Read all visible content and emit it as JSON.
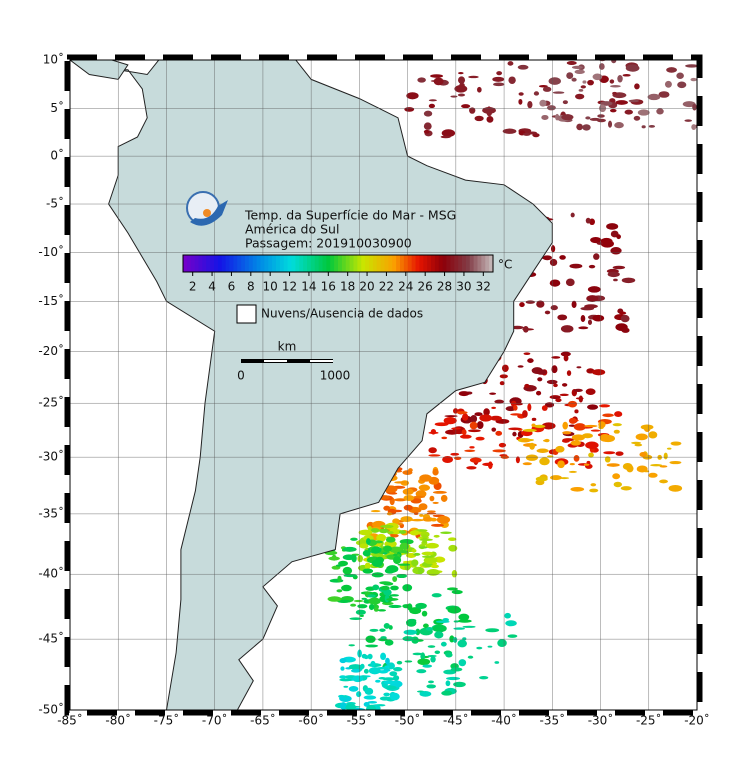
{
  "map": {
    "title_lines": [
      "Temp. da Superfície do Mar - MSG",
      "América do Sul",
      "Passagem: 201910030900"
    ],
    "lon_ticks": [
      {
        "value": -85,
        "label": "-85˚"
      },
      {
        "value": -80,
        "label": "-80˚"
      },
      {
        "value": -75,
        "label": "-75˚"
      },
      {
        "value": -70,
        "label": "-70˚"
      },
      {
        "value": -65,
        "label": "-65˚"
      },
      {
        "value": -60,
        "label": "-60˚"
      },
      {
        "value": -55,
        "label": "-55˚"
      },
      {
        "value": -50,
        "label": "-50˚"
      },
      {
        "value": -45,
        "label": "-45˚"
      },
      {
        "value": -40,
        "label": "-40˚"
      },
      {
        "value": -35,
        "label": "-35˚"
      },
      {
        "value": -30,
        "label": "-30˚"
      },
      {
        "value": -25,
        "label": "-25˚"
      },
      {
        "value": -20,
        "label": "-20˚"
      }
    ],
    "lat_ticks": [
      {
        "value": 10,
        "label": "10˚"
      },
      {
        "value": 5,
        "label": "5˚"
      },
      {
        "value": 0,
        "label": "0˚"
      },
      {
        "value": -5,
        "label": "-5˚"
      },
      {
        "value": -10,
        "label": "-10˚"
      },
      {
        "value": -15,
        "label": "-15˚"
      },
      {
        "value": -20,
        "label": "-20˚"
      },
      {
        "value": -25,
        "label": "-25˚"
      },
      {
        "value": -30,
        "label": "-30˚"
      },
      {
        "value": -35,
        "label": "-35˚"
      },
      {
        "value": -40,
        "label": "-40˚"
      },
      {
        "value": -45,
        "label": "-45˚"
      },
      {
        "value": -50,
        "label": "-50˚"
      }
    ],
    "xlim": [
      -85,
      -20
    ],
    "ylim": [
      -50,
      10
    ],
    "colorbar": {
      "unit": "°C",
      "clim": [
        1,
        33
      ],
      "ticks": [
        2,
        4,
        6,
        8,
        10,
        12,
        14,
        16,
        18,
        20,
        22,
        24,
        26,
        28,
        30,
        32
      ]
    },
    "legend": "Nuvens/Ausencia de dados",
    "scale_bar": {
      "unit": "km",
      "ticks": [
        "0",
        "1000"
      ]
    }
  }
}
